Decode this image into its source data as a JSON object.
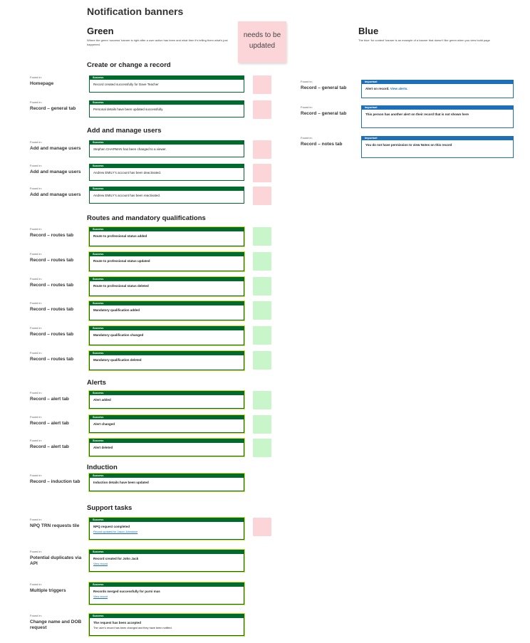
{
  "page_title": "Notification banners",
  "green": {
    "title": "Green",
    "desc": "Where the green ‘success’ banner is right after a user action has been and what then it’s telling them what’s just happened."
  },
  "blue": {
    "title": "Blue",
    "desc": "The blue ‘for context’ banner is an example of a banner that doesn’t like green when you view build page"
  },
  "sticky_note": "needs to be updated",
  "found_in_label": "Found in:",
  "success_label": "Success",
  "important_label": "Important",
  "sections": [
    {
      "title": "Create or change a record",
      "rows": [
        {
          "found": "Homepage",
          "message": "Record created successfully for Dave Teacher",
          "bold": false,
          "note": "pink"
        },
        {
          "found": "Record – general tab",
          "message": "Personal details have been updated successfully.",
          "bold": false,
          "note": "pink"
        }
      ]
    },
    {
      "title": "Add and manage users",
      "rows": [
        {
          "found": "Add and manage users",
          "message": "Stephen CHAPMAN has been changed to a viewer.",
          "bold": false,
          "note": "pink"
        },
        {
          "found": "Add and manage users",
          "message": "Andrew EMILY’s account has been deactivated.",
          "bold": false,
          "note": "pink"
        },
        {
          "found": "Add and manage users",
          "message": "Andrew EMILY’s account has been reactivated.",
          "bold": false,
          "note": "pink"
        }
      ]
    },
    {
      "title": "Routes and mandatory qualifications",
      "rows": [
        {
          "found": "Record – routes tab",
          "message": "Route to professional status added",
          "bold": true,
          "note": "green"
        },
        {
          "found": "Record – routes tab",
          "message": "Route to professional status updated",
          "bold": true,
          "note": "green"
        },
        {
          "found": "Record – routes tab",
          "message": "Route to professional status deleted",
          "bold": true,
          "note": "green"
        },
        {
          "found": "Record – routes tab",
          "message": "Mandatory qualification added",
          "bold": true,
          "note": "green"
        },
        {
          "found": "Record – routes tab",
          "message": "Mandatory qualification changed",
          "bold": true,
          "note": "green"
        },
        {
          "found": "Record – routes tab",
          "message": "Mandatory qualification deleted",
          "bold": true,
          "note": "green"
        }
      ]
    },
    {
      "title": "Alerts",
      "rows": [
        {
          "found": "Record – alert tab",
          "message": "Alert added",
          "bold": true,
          "note": "green"
        },
        {
          "found": "Record – alert tab",
          "message": "Alert changed",
          "bold": true,
          "note": "green"
        },
        {
          "found": "Record – alert tab",
          "message": "Alert deleted",
          "bold": true,
          "note": "green"
        }
      ]
    },
    {
      "title": "Induction",
      "rows": [
        {
          "found": "Record – induction tab",
          "message": "Induction details have been updated",
          "bold": true,
          "note": "none"
        }
      ]
    },
    {
      "title": "Support tasks",
      "rows": [
        {
          "found": "NPQ TRN requests tile",
          "message": "NPQ request completed",
          "link": "Record updated for Jason Johnstone",
          "bold": true,
          "note": "pink"
        },
        {
          "found": "Potential duplicates via API",
          "message": "Record created for John Jack",
          "link": "View record",
          "bold": true,
          "note": "none"
        },
        {
          "found": "Multiple triggers",
          "message": "Records merged successfully for purni mas",
          "link": "View record",
          "bold": true,
          "note": "none"
        },
        {
          "found": "Change name and DOB request",
          "message": "The request has been accepted",
          "sub": "The user’s record has been changed and they have been notified.",
          "bold": true,
          "note": "none"
        }
      ]
    }
  ],
  "blue_rows": [
    {
      "found": "Record – general tab",
      "message": "Alert on record.",
      "link": "View alerts."
    },
    {
      "found": "Record – general tab",
      "message": "This person has another alert on their record that is not shown here"
    },
    {
      "found": "Record – notes tab",
      "message": "You do not have permission to view Notes on this record"
    }
  ]
}
